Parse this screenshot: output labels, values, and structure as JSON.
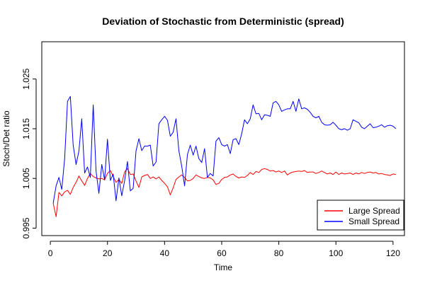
{
  "chart_data": {
    "type": "line",
    "title": "Deviation of Stochastic from Deterministic (spread)",
    "xlabel": "Time",
    "ylabel": "Stoch/Det ratio",
    "xlim": [
      -3,
      124
    ],
    "ylim": [
      0.9935,
      1.0325
    ],
    "x_ticks": [
      0,
      20,
      40,
      60,
      80,
      100,
      120
    ],
    "y_ticks": [
      0.995,
      1.005,
      1.015,
      1.025
    ],
    "y_tick_labels": [
      "0.995",
      "1.005",
      "1.015",
      "1.025"
    ],
    "grid": false,
    "legend_position": "bottom-right",
    "x": [
      1,
      2,
      3,
      4,
      5,
      6,
      7,
      8,
      9,
      10,
      11,
      12,
      13,
      14,
      15,
      16,
      17,
      18,
      19,
      20,
      21,
      22,
      23,
      24,
      25,
      26,
      27,
      28,
      29,
      30,
      31,
      32,
      33,
      34,
      35,
      36,
      37,
      38,
      39,
      40,
      41,
      42,
      43,
      44,
      45,
      46,
      47,
      48,
      49,
      50,
      51,
      52,
      53,
      54,
      55,
      56,
      57,
      58,
      59,
      60,
      61,
      62,
      63,
      64,
      65,
      66,
      67,
      68,
      69,
      70,
      71,
      72,
      73,
      74,
      75,
      76,
      77,
      78,
      79,
      80,
      81,
      82,
      83,
      84,
      85,
      86,
      87,
      88,
      89,
      90,
      91,
      92,
      93,
      94,
      95,
      96,
      97,
      98,
      99,
      100,
      101,
      102,
      103,
      104,
      105,
      106,
      107,
      108,
      109,
      110,
      111,
      112,
      113,
      114,
      115,
      116,
      117,
      118,
      119,
      120,
      121
    ],
    "series": [
      {
        "name": "Large Spread",
        "color": "#ff0000",
        "values": [
          1.0,
          0.9973,
          1.0022,
          1.0015,
          1.0023,
          1.0026,
          1.0018,
          1.0032,
          1.0042,
          1.0055,
          1.0045,
          1.0036,
          1.005,
          1.006,
          1.0054,
          1.0051,
          1.0049,
          1.005,
          1.0047,
          1.006,
          1.0066,
          1.0054,
          1.0042,
          1.0048,
          1.004,
          1.0063,
          1.007,
          1.0058,
          1.0059,
          1.0045,
          1.0032,
          1.0053,
          1.0056,
          1.0058,
          1.005,
          1.0053,
          1.0049,
          1.0053,
          1.0046,
          1.004,
          1.0033,
          1.0017,
          1.0031,
          1.0048,
          1.0053,
          1.0057,
          1.0052,
          1.0045,
          1.0046,
          1.005,
          1.0057,
          1.0054,
          1.0051,
          1.005,
          1.0052,
          1.0051,
          1.0047,
          1.0038,
          1.004,
          1.0048,
          1.0052,
          1.0053,
          1.0057,
          1.0059,
          1.0054,
          1.0051,
          1.0053,
          1.0052,
          1.0056,
          1.0062,
          1.0058,
          1.0064,
          1.0062,
          1.0068,
          1.007,
          1.0068,
          1.0065,
          1.0066,
          1.0063,
          1.0065,
          1.0062,
          1.0065,
          1.0057,
          1.0061,
          1.0063,
          1.0064,
          1.0065,
          1.0064,
          1.0066,
          1.0062,
          1.0063,
          1.0063,
          1.006,
          1.0062,
          1.0065,
          1.0062,
          1.0059,
          1.0061,
          1.0058,
          1.0063,
          1.0058,
          1.0061,
          1.0059,
          1.006,
          1.0061,
          1.0058,
          1.0061,
          1.0059,
          1.0062,
          1.006,
          1.0062,
          1.0063,
          1.0061,
          1.0062,
          1.0059,
          1.006,
          1.0058,
          1.0057,
          1.0056,
          1.0059,
          1.0058
        ]
      },
      {
        "name": "Small Spread",
        "color": "#0000ff",
        "values": [
          1.0,
          1.0035,
          1.0052,
          1.0028,
          1.009,
          1.0205,
          1.0215,
          1.0117,
          1.0078,
          1.0105,
          1.017,
          1.0061,
          1.0073,
          1.0052,
          1.0198,
          1.0065,
          1.002,
          1.0078,
          1.0047,
          1.0129,
          1.0046,
          1.0059,
          1.0005,
          1.0051,
          1.0015,
          1.0045,
          1.0084,
          1.0025,
          1.003,
          1.0105,
          1.013,
          1.0106,
          1.0115,
          1.0115,
          1.0117,
          1.0075,
          1.0083,
          1.016,
          1.0168,
          1.0175,
          1.0167,
          1.0135,
          1.0143,
          1.017,
          1.0106,
          1.0075,
          1.0035,
          1.0098,
          1.0117,
          1.0097,
          1.0115,
          1.009,
          1.0082,
          1.011,
          1.0052,
          1.006,
          1.0055,
          1.0125,
          1.0132,
          1.0118,
          1.0115,
          1.0118,
          1.01,
          1.0128,
          1.013,
          1.0118,
          1.014,
          1.0168,
          1.016,
          1.017,
          1.0198,
          1.018,
          1.0181,
          1.0168,
          1.0178,
          1.0177,
          1.0175,
          1.0202,
          1.0205,
          1.0198,
          1.0185,
          1.0188,
          1.019,
          1.019,
          1.0205,
          1.0185,
          1.021,
          1.019,
          1.0192,
          1.0189,
          1.0183,
          1.0175,
          1.0172,
          1.0175,
          1.0163,
          1.0158,
          1.0157,
          1.0158,
          1.0163,
          1.0157,
          1.015,
          1.0148,
          1.015,
          1.0147,
          1.015,
          1.0168,
          1.0165,
          1.0162,
          1.0153,
          1.015,
          1.0155,
          1.016,
          1.0152,
          1.0153,
          1.0155,
          1.0158,
          1.0153,
          1.0156,
          1.0157,
          1.0155,
          1.015
        ]
      }
    ]
  }
}
